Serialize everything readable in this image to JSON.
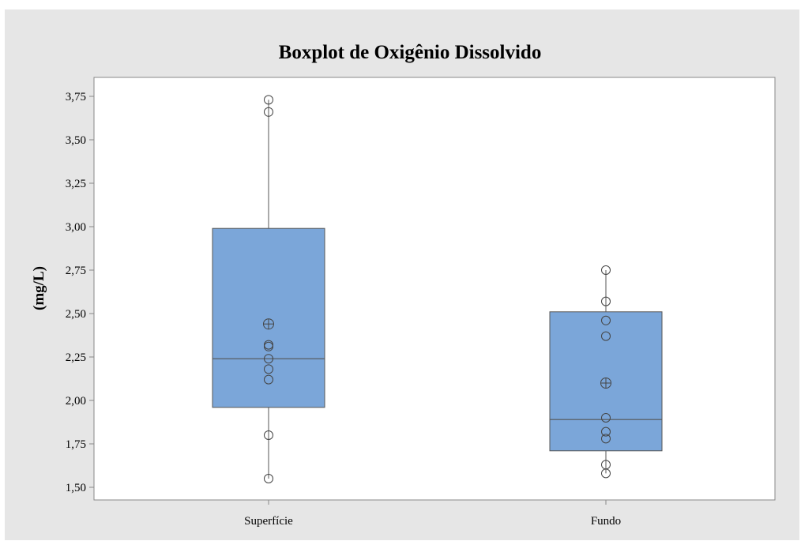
{
  "colors": {
    "outer_background": "#e6e6e6",
    "plot_background": "#ffffff",
    "box_fill": "#7ba6d9",
    "box_stroke": "#555555",
    "axis": "#888888"
  },
  "chart_data": {
    "type": "boxplot",
    "title": "Boxplot de Oxigênio Dissolvido",
    "xlabel": "",
    "ylabel": "(mg/L)",
    "ylim": [
      1.47,
      3.82
    ],
    "yticks": [
      1.5,
      1.75,
      2.0,
      2.25,
      2.5,
      2.75,
      3.0,
      3.25,
      3.5,
      3.75
    ],
    "ytick_labels": [
      "1,50",
      "1,75",
      "2,00",
      "2,25",
      "2,50",
      "2,75",
      "3,00",
      "3,25",
      "3,50",
      "3,75"
    ],
    "grid": false,
    "categories": [
      "Superfície",
      "Fundo"
    ],
    "boxes": [
      {
        "category": "Superfície",
        "whisker_low": 1.55,
        "q1": 1.96,
        "median": 2.24,
        "q3": 2.99,
        "whisker_high": 3.73,
        "mean": 2.44,
        "points": [
          3.73,
          3.66,
          2.32,
          2.31,
          2.24,
          2.18,
          2.12,
          1.8,
          1.55
        ]
      },
      {
        "category": "Fundo",
        "whisker_low": 1.58,
        "q1": 1.71,
        "median": 1.89,
        "q3": 2.51,
        "whisker_high": 2.75,
        "mean": 2.1,
        "points": [
          2.75,
          2.57,
          2.46,
          2.37,
          1.9,
          1.82,
          1.78,
          1.63,
          1.58
        ]
      }
    ]
  }
}
